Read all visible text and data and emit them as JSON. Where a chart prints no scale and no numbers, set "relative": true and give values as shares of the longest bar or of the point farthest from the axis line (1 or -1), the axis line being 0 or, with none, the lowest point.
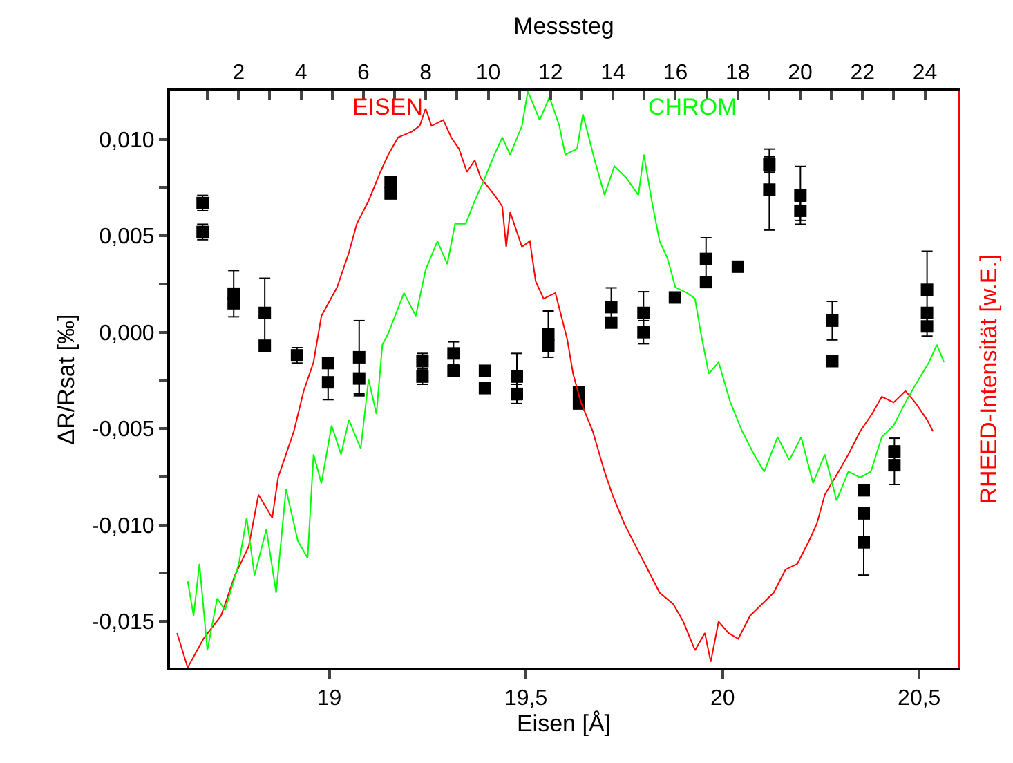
{
  "chart_data": [
    {
      "type": "scatter",
      "xlabel": "Eisen [Å]",
      "ylabel": "ΔR/Rsat [‰]",
      "x2label": "Messsteg",
      "marker": "square",
      "color": "#000000",
      "x": [
        18.678,
        18.678,
        18.757,
        18.757,
        18.836,
        18.836,
        18.918,
        18.997,
        18.997,
        19.076,
        19.076,
        19.156,
        19.156,
        19.237,
        19.237,
        19.316,
        19.316,
        19.396,
        19.396,
        19.477,
        19.477,
        19.557,
        19.557,
        19.635,
        19.635,
        19.717,
        19.717,
        19.799,
        19.799,
        19.879,
        19.958,
        19.958,
        20.039,
        20.119,
        20.119,
        20.198,
        20.198,
        20.279,
        20.279,
        20.359,
        20.359,
        20.359,
        20.437,
        20.437,
        20.52,
        20.52,
        20.52
      ],
      "values": [
        0.0067,
        0.0052,
        0.002,
        0.0015,
        0.001,
        -0.0007,
        -0.0012,
        -0.0016,
        -0.0026,
        -0.0013,
        -0.0024,
        0.0078,
        0.0072,
        -0.0015,
        -0.0023,
        -0.0011,
        -0.002,
        -0.002,
        -0.0029,
        -0.0023,
        -0.0032,
        -0.0001,
        -0.0007,
        -0.0031,
        -0.0037,
        0.0013,
        0.0005,
        0.001,
        0.0,
        0.0018,
        0.0038,
        0.0026,
        0.0034,
        0.0087,
        0.0074,
        0.0071,
        0.0063,
        0.0006,
        -0.0015,
        -0.0082,
        -0.0094,
        -0.0109,
        -0.0062,
        -0.0069,
        0.0022,
        0.001,
        0.0003
      ],
      "errors": [
        0.0004,
        0.0004,
        0.0012,
        null,
        0.0018,
        null,
        0.0004,
        null,
        0.0009,
        0.0019,
        0.0009,
        null,
        null,
        0.0004,
        0.0004,
        0.0006,
        null,
        null,
        null,
        0.0012,
        0.0005,
        0.0012,
        null,
        null,
        null,
        0.001,
        null,
        0.0011,
        0.0006,
        null,
        0.0011,
        null,
        null,
        0.0004,
        0.0021,
        0.0015,
        0.0005,
        0.001,
        null,
        null,
        null,
        0.0017,
        0.0007,
        0.001,
        0.002,
        null,
        0.0005
      ],
      "xlim": [
        18.595,
        20.598
      ],
      "xticks": [
        19,
        {
          "value": 19.5,
          "label": "19,5"
        },
        20,
        {
          "value": 20.5,
          "label": "20,5"
        }
      ],
      "ylim": [
        -0.0174,
        0.0125
      ],
      "yticks": [
        {
          "value": -0.015,
          "label": "-0,015"
        },
        {
          "value": -0.0125,
          "label": null
        },
        {
          "value": -0.01,
          "label": "-0,010"
        },
        {
          "value": -0.0075,
          "label": null
        },
        {
          "value": -0.005,
          "label": "-0,005"
        },
        {
          "value": -0.0025,
          "label": null
        },
        {
          "value": 0,
          "label": "0,000"
        },
        {
          "value": 0.0025,
          "label": null
        },
        {
          "value": 0.005,
          "label": "0,005"
        },
        {
          "value": 0.0075,
          "label": null
        },
        {
          "value": 0.01,
          "label": "0,010"
        }
      ],
      "x2lim": [
        -0.2,
        25.05
      ],
      "x2ticks": [
        {
          "value": 1,
          "label": null
        },
        2,
        {
          "value": 3,
          "label": null
        },
        4,
        {
          "value": 5,
          "label": null
        },
        6,
        {
          "value": 7,
          "label": null
        },
        8,
        {
          "value": 9,
          "label": null
        },
        10,
        {
          "value": 11,
          "label": null
        },
        12,
        {
          "value": 13,
          "label": null
        },
        14,
        {
          "value": 15,
          "label": null
        },
        16,
        {
          "value": 17,
          "label": null
        },
        18,
        {
          "value": 19,
          "label": null
        },
        20,
        {
          "value": 21,
          "label": null
        },
        22,
        {
          "value": 23,
          "label": null
        },
        24
      ]
    },
    {
      "type": "line",
      "relative": true,
      "y2label": "RHEED-Intensität [w.E.]",
      "xlim": [
        18.595,
        20.598
      ],
      "tick_labels": false,
      "series": [
        {
          "name": "EISEN",
          "color": "#ff0000",
          "axis": "y2",
          "x": [
            18.613,
            18.64,
            18.68,
            18.725,
            18.76,
            18.795,
            18.82,
            18.855,
            18.87,
            18.89,
            18.91,
            18.935,
            18.96,
            18.98,
            19.02,
            19.05,
            19.07,
            19.1,
            19.13,
            19.15,
            19.175,
            19.21,
            19.23,
            19.245,
            19.26,
            19.29,
            19.31,
            19.33,
            19.35,
            19.37,
            19.385,
            19.42,
            19.44,
            19.45,
            19.46,
            19.49,
            19.51,
            19.525,
            19.545,
            19.575,
            19.605,
            19.62,
            19.64,
            19.67,
            19.7,
            19.72,
            19.75,
            19.78,
            19.81,
            19.84,
            19.875,
            19.9,
            19.93,
            19.955,
            19.97,
            19.99,
            20.015,
            20.04,
            20.07,
            20.1,
            20.13,
            20.16,
            20.19,
            20.22,
            20.24,
            20.26,
            20.295,
            20.32,
            20.35,
            20.38,
            20.405,
            20.435,
            20.465,
            20.49,
            20.52,
            20.535
          ],
          "values": [
            0.06,
            0.0,
            0.05,
            0.09,
            0.16,
            0.21,
            0.3,
            0.26,
            0.33,
            0.37,
            0.41,
            0.48,
            0.53,
            0.61,
            0.66,
            0.72,
            0.77,
            0.81,
            0.86,
            0.89,
            0.92,
            0.93,
            0.94,
            0.97,
            0.94,
            0.95,
            0.92,
            0.9,
            0.86,
            0.88,
            0.85,
            0.82,
            0.8,
            0.73,
            0.79,
            0.73,
            0.74,
            0.67,
            0.64,
            0.65,
            0.57,
            0.51,
            0.46,
            0.41,
            0.34,
            0.3,
            0.25,
            0.21,
            0.17,
            0.13,
            0.11,
            0.08,
            0.03,
            0.06,
            0.01,
            0.08,
            0.06,
            0.05,
            0.09,
            0.11,
            0.13,
            0.17,
            0.18,
            0.22,
            0.25,
            0.3,
            0.34,
            0.37,
            0.41,
            0.44,
            0.47,
            0.46,
            0.48,
            0.46,
            0.43,
            0.41
          ]
        },
        {
          "name": "CHROM",
          "color": "#00ff00",
          "axis": "y2",
          "x": [
            18.64,
            18.655,
            18.67,
            18.69,
            18.715,
            18.735,
            18.77,
            18.79,
            18.81,
            18.84,
            18.865,
            18.89,
            18.92,
            18.945,
            18.96,
            18.98,
            19.006,
            19.03,
            19.05,
            19.08,
            19.1,
            19.12,
            19.135,
            19.15,
            19.19,
            19.22,
            19.245,
            19.275,
            19.3,
            19.32,
            19.347,
            19.37,
            19.39,
            19.42,
            19.44,
            19.46,
            19.49,
            19.505,
            19.535,
            19.56,
            19.585,
            19.6,
            19.63,
            19.645,
            19.675,
            19.7,
            19.725,
            19.755,
            19.786,
            19.8,
            19.82,
            19.84,
            19.86,
            19.88,
            19.91,
            19.93,
            19.945,
            19.965,
            19.99,
            20.02,
            20.05,
            20.08,
            20.106,
            20.14,
            20.17,
            20.2,
            20.23,
            20.26,
            20.29,
            20.32,
            20.35,
            20.377,
            20.405,
            20.435,
            20.465,
            20.49,
            20.525,
            20.545,
            20.563
          ],
          "values": [
            0.15,
            0.09,
            0.18,
            0.03,
            0.12,
            0.1,
            0.18,
            0.26,
            0.16,
            0.24,
            0.13,
            0.31,
            0.22,
            0.19,
            0.37,
            0.32,
            0.42,
            0.37,
            0.43,
            0.38,
            0.5,
            0.44,
            0.56,
            0.58,
            0.65,
            0.61,
            0.69,
            0.74,
            0.7,
            0.77,
            0.77,
            0.81,
            0.84,
            0.89,
            0.92,
            0.89,
            0.94,
            1.0,
            0.95,
            0.99,
            0.94,
            0.89,
            0.9,
            0.96,
            0.88,
            0.82,
            0.87,
            0.85,
            0.82,
            0.89,
            0.81,
            0.74,
            0.71,
            0.66,
            0.65,
            0.64,
            0.58,
            0.51,
            0.53,
            0.46,
            0.41,
            0.37,
            0.34,
            0.4,
            0.36,
            0.4,
            0.32,
            0.37,
            0.29,
            0.34,
            0.33,
            0.34,
            0.4,
            0.42,
            0.46,
            0.49,
            0.53,
            0.56,
            0.53
          ]
        }
      ]
    }
  ]
}
